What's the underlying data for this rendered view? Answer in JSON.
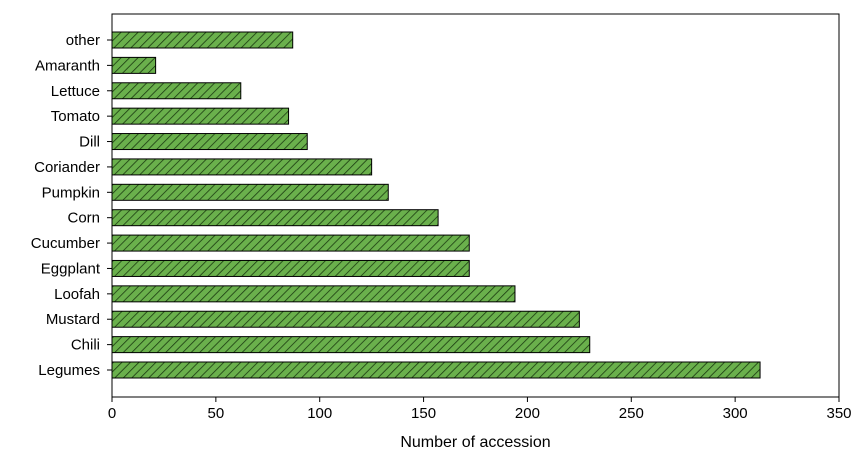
{
  "chart_data": {
    "type": "bar",
    "orientation": "horizontal",
    "categories": [
      "other",
      "Amaranth",
      "Lettuce",
      "Tomato",
      "Dill",
      "Coriander",
      "Pumpkin",
      "Corn",
      "Cucumber",
      "Eggplant",
      "Loofah",
      "Mustard",
      "Chili",
      "Legumes"
    ],
    "values": [
      87,
      21,
      62,
      85,
      94,
      125,
      133,
      157,
      172,
      172,
      194,
      225,
      230,
      312
    ],
    "title": "",
    "xlabel": "Number of accession",
    "ylabel": "",
    "xlim": [
      0,
      350
    ],
    "xticks": [
      "0",
      "50",
      "100",
      "150",
      "200",
      "250",
      "300",
      "350"
    ],
    "grid": false,
    "legend": "none",
    "bar_color": "#6ab04c",
    "hatch": "diagonal"
  }
}
